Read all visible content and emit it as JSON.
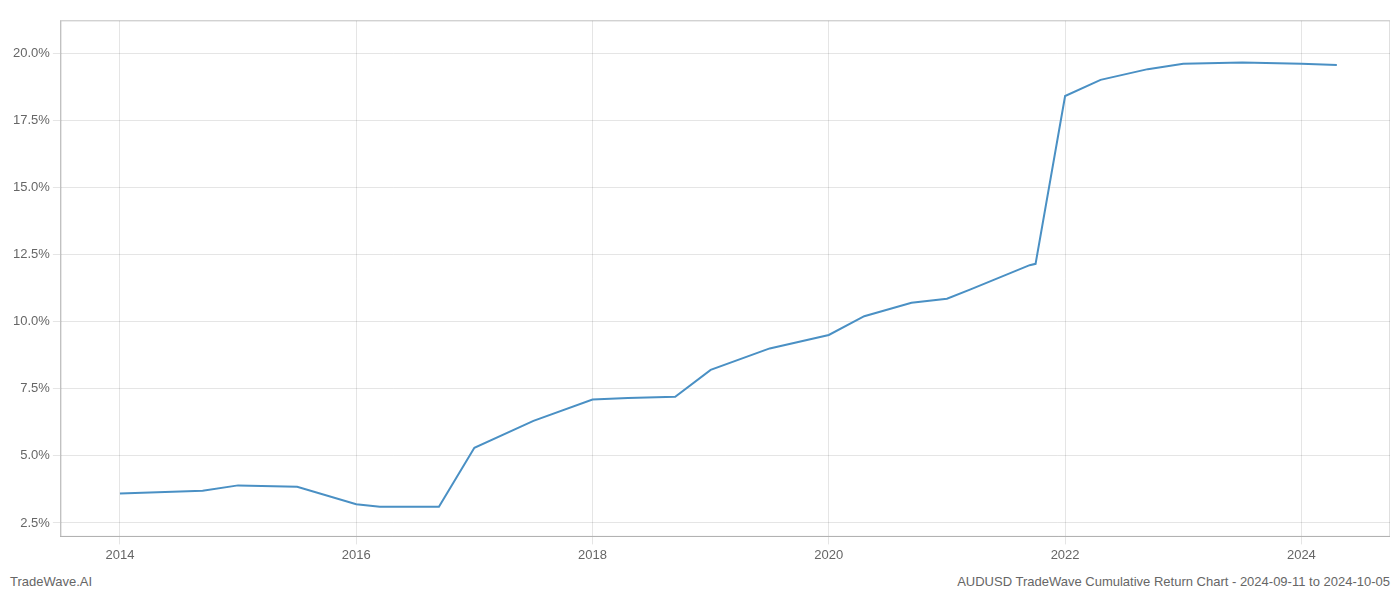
{
  "chart_data": {
    "type": "line",
    "x": [
      2014.0,
      2014.7,
      2015.0,
      2015.5,
      2016.0,
      2016.2,
      2016.7,
      2017.0,
      2017.5,
      2018.0,
      2018.3,
      2018.7,
      2019.0,
      2019.5,
      2020.0,
      2020.3,
      2020.7,
      2021.0,
      2021.2,
      2021.7,
      2021.75,
      2022.0,
      2022.3,
      2022.7,
      2023.0,
      2023.5,
      2024.0,
      2024.3
    ],
    "values": [
      3.6,
      3.7,
      3.9,
      3.85,
      3.2,
      3.1,
      3.1,
      5.3,
      6.3,
      7.1,
      7.15,
      7.2,
      8.2,
      9.0,
      9.5,
      10.2,
      10.7,
      10.85,
      11.2,
      12.1,
      12.15,
      18.4,
      19.0,
      19.4,
      19.6,
      19.65,
      19.6,
      19.55
    ],
    "color": "#4a90c4",
    "xlim": [
      2013.5,
      2024.75
    ],
    "xticks": [
      2014,
      2016,
      2018,
      2020,
      2022,
      2024
    ],
    "ylim": [
      2.0,
      21.2
    ],
    "yticks": [
      {
        "value": 2.5,
        "label": "2.5%"
      },
      {
        "value": 5.0,
        "label": "5.0%"
      },
      {
        "value": 7.5,
        "label": "7.5%"
      },
      {
        "value": 10.0,
        "label": "10.0%"
      },
      {
        "value": 12.5,
        "label": "12.5%"
      },
      {
        "value": 15.0,
        "label": "15.0%"
      },
      {
        "value": 17.5,
        "label": "17.5%"
      },
      {
        "value": 20.0,
        "label": "20.0%"
      }
    ],
    "grid": true,
    "annotations": [
      "TradeWave.AI",
      "AUDUSD TradeWave Cumulative Return Chart - 2024-09-11 to 2024-10-05"
    ]
  }
}
